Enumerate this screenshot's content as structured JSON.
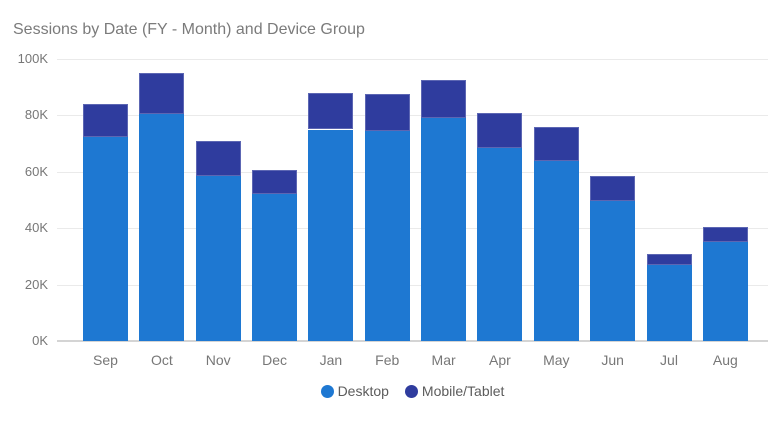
{
  "title": "Sessions by Date (FY - Month) and Device Group",
  "chart_data": {
    "type": "bar",
    "stacked": true,
    "title": "Sessions by Date (FY - Month) and Device Group",
    "xlabel": "",
    "ylabel": "",
    "categories": [
      "Sep",
      "Oct",
      "Nov",
      "Dec",
      "Jan",
      "Feb",
      "Mar",
      "Apr",
      "May",
      "Jun",
      "Jul",
      "Aug"
    ],
    "series": [
      {
        "name": "Desktop",
        "color": "#1E78D2",
        "values_thousands": [
          72.5,
          80.5,
          58.5,
          52,
          75,
          74.5,
          79,
          68.5,
          64,
          49.5,
          27,
          35
        ]
      },
      {
        "name": "Mobile/Tablet",
        "color": "#2F3C9E",
        "values_thousands": [
          11.5,
          14.5,
          12.5,
          8.5,
          13,
          13,
          13.5,
          12.5,
          12,
          9,
          4,
          5.5
        ]
      }
    ],
    "totals_thousands": [
      84,
      95,
      71,
      60.5,
      88,
      87.5,
      92.5,
      81,
      76,
      58.5,
      31,
      40.5
    ],
    "y_axis": {
      "min_thousands": 0,
      "max_thousands": 100,
      "tick_values_thousands": [
        0,
        20,
        40,
        60,
        80,
        100
      ],
      "tick_labels": [
        "0K",
        "20K",
        "40K",
        "60K",
        "80K",
        "100K"
      ],
      "grid": true
    },
    "legend": {
      "position": "bottom-center",
      "entries": [
        "Desktop",
        "Mobile/Tablet"
      ]
    }
  },
  "colors": {
    "background": "#ffffff",
    "title_text": "#7b7b7b",
    "axis_text": "#777777",
    "legend_text": "#5c5c5c",
    "gridline": "#eaeaea",
    "axis_line": "#d4d4d4",
    "desktop": "#1E78D2",
    "mobile_tablet": "#2F3C9E"
  }
}
